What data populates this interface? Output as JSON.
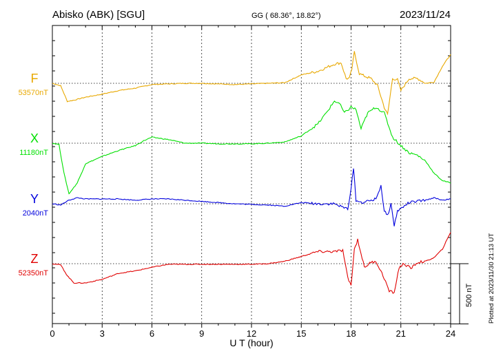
{
  "chart_data": {
    "type": "line",
    "title_left": "Abisko (ABK)  [SGU]",
    "title_center": "GG ( 68.36°,  18.82°)",
    "title_right": "2023/11/24",
    "xlabel": "U T (hour)",
    "xlim": [
      0,
      24
    ],
    "xticks": [
      "0",
      "3",
      "6",
      "9",
      "12",
      "15",
      "18",
      "21",
      "24"
    ],
    "grid": true,
    "scale_bar_label": "500 nT",
    "plotted_note": "Plotted at 2023/11/30 21:13 UT",
    "colors": {
      "F": "#e8a800",
      "X": "#00e000",
      "Y": "#0000dd",
      "Z": "#e00000"
    },
    "series": [
      {
        "name": "F",
        "baseline_label": "53570nT",
        "x": [
          0,
          0.5,
          0.9,
          1.3,
          2.0,
          3.0,
          4.0,
          5.0,
          6.0,
          7.0,
          8.0,
          9.0,
          10.0,
          11.0,
          12.0,
          13.0,
          14.0,
          15.0,
          16.0,
          17.0,
          17.4,
          17.7,
          17.9,
          18.05,
          18.2,
          18.5,
          18.8,
          19.2,
          19.6,
          20.0,
          20.2,
          20.5,
          20.8,
          21.0,
          21.5,
          22.0,
          22.5,
          23.0,
          23.5,
          24.0
        ],
        "y": [
          0,
          -20,
          -150,
          -140,
          -115,
          -90,
          -60,
          -40,
          -10,
          -5,
          0,
          0,
          -5,
          -10,
          -5,
          0,
          5,
          70,
          100,
          160,
          170,
          40,
          40,
          120,
          260,
          80,
          60,
          40,
          -20,
          -200,
          -260,
          40,
          30,
          -60,
          40,
          40,
          0,
          10,
          140,
          240
        ]
      },
      {
        "name": "X",
        "baseline_label": "11180nT",
        "x": [
          0,
          0.4,
          0.7,
          1.0,
          1.5,
          2.0,
          3.0,
          4.0,
          5.0,
          5.5,
          6.0,
          7.0,
          8.0,
          9.0,
          10.0,
          11.0,
          12.0,
          13.0,
          14.0,
          15.0,
          16.0,
          16.5,
          17.0,
          17.3,
          17.6,
          18.0,
          18.3,
          18.6,
          19.0,
          19.5,
          20.0,
          20.5,
          21.0,
          21.5,
          22.0,
          22.5,
          23.0,
          23.5,
          24.0
        ],
        "y": [
          0,
          -10,
          -250,
          -420,
          -330,
          -170,
          -110,
          -60,
          -20,
          20,
          50,
          30,
          0,
          0,
          -5,
          -5,
          -5,
          0,
          10,
          60,
          160,
          250,
          350,
          330,
          250,
          300,
          280,
          120,
          250,
          300,
          250,
          50,
          -20,
          -80,
          -100,
          -150,
          -250,
          -310,
          -330
        ]
      },
      {
        "name": "Y",
        "baseline_label": "2040nT",
        "x": [
          0,
          0.5,
          1.0,
          1.5,
          2.0,
          3.0,
          4.0,
          5.0,
          6.0,
          7.0,
          8.0,
          9.0,
          10.0,
          11.0,
          12.0,
          13.0,
          14.0,
          15.0,
          16.0,
          17.0,
          17.5,
          17.8,
          18.0,
          18.15,
          18.3,
          18.6,
          19.0,
          19.5,
          19.8,
          20.0,
          20.2,
          20.4,
          20.6,
          20.8,
          21.0,
          21.5,
          22.0,
          22.5,
          23.0,
          23.5,
          24.0
        ],
        "y": [
          0,
          -10,
          30,
          50,
          40,
          40,
          40,
          30,
          40,
          40,
          30,
          20,
          10,
          0,
          -5,
          -10,
          -20,
          10,
          0,
          0,
          -30,
          -40,
          120,
          300,
          30,
          10,
          20,
          40,
          150,
          -60,
          -100,
          0,
          -180,
          -60,
          -40,
          10,
          20,
          30,
          50,
          30,
          40
        ]
      },
      {
        "name": "Z",
        "baseline_label": "52350nT",
        "x": [
          0,
          0.5,
          0.9,
          1.3,
          2.0,
          3.0,
          4.0,
          5.0,
          6.0,
          7.0,
          8.0,
          9.0,
          10.0,
          11.0,
          12.0,
          13.0,
          14.0,
          15.0,
          16.0,
          17.0,
          17.5,
          17.8,
          18.0,
          18.2,
          18.4,
          18.8,
          19.2,
          19.5,
          20.0,
          20.3,
          20.6,
          20.9,
          21.2,
          21.6,
          22.0,
          22.5,
          23.0,
          23.5,
          24.0
        ],
        "y": [
          0,
          -10,
          -100,
          -160,
          -160,
          -130,
          -80,
          -60,
          -30,
          -5,
          -5,
          -5,
          -5,
          -5,
          -5,
          0,
          20,
          60,
          100,
          100,
          110,
          -120,
          -180,
          120,
          200,
          -30,
          10,
          20,
          -120,
          -230,
          -240,
          -30,
          0,
          -40,
          10,
          20,
          50,
          120,
          260
        ]
      }
    ]
  }
}
